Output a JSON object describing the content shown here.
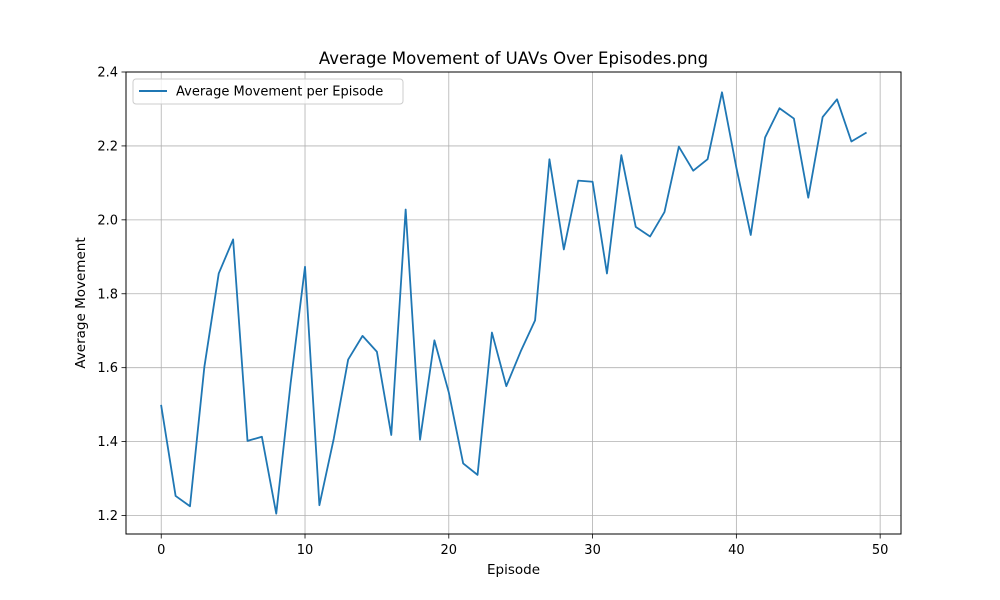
{
  "chart_data": {
    "type": "line",
    "title": "Average Movement of UAVs Over Episodes.png",
    "xlabel": "Episode",
    "ylabel": "Average Movement",
    "xlim": [
      -2.45,
      51.45
    ],
    "ylim": [
      1.15,
      2.4
    ],
    "xticks": [
      0,
      10,
      20,
      30,
      40,
      50
    ],
    "yticks": [
      1.2,
      1.4,
      1.6,
      1.8,
      2.0,
      2.2,
      2.4
    ],
    "ytick_labels": [
      "1.2",
      "1.4",
      "1.6",
      "1.8",
      "2.0",
      "2.2",
      "2.4"
    ],
    "grid": true,
    "legend_position": "upper-left",
    "series": [
      {
        "name": "Average Movement per Episode",
        "color": "#1f77b4",
        "x": [
          0,
          1,
          2,
          3,
          4,
          5,
          6,
          7,
          8,
          9,
          10,
          11,
          12,
          13,
          14,
          15,
          16,
          17,
          18,
          19,
          20,
          21,
          22,
          23,
          24,
          25,
          26,
          27,
          28,
          29,
          30,
          31,
          32,
          33,
          34,
          35,
          36,
          37,
          38,
          39,
          40,
          41,
          42,
          43,
          44,
          45,
          46,
          47,
          48,
          49
        ],
        "y": [
          1.497,
          1.253,
          1.225,
          1.602,
          1.855,
          1.947,
          1.402,
          1.413,
          1.205,
          1.558,
          1.873,
          1.228,
          1.408,
          1.622,
          1.686,
          1.643,
          1.418,
          2.028,
          1.405,
          1.674,
          1.533,
          1.341,
          1.31,
          1.695,
          1.55,
          1.644,
          1.728,
          2.164,
          1.92,
          2.106,
          2.103,
          1.855,
          2.175,
          1.981,
          1.955,
          2.021,
          2.198,
          2.133,
          2.164,
          2.345,
          2.141,
          1.959,
          2.223,
          2.302,
          2.274,
          2.06,
          2.278,
          2.326,
          2.212,
          2.235
        ]
      }
    ]
  }
}
